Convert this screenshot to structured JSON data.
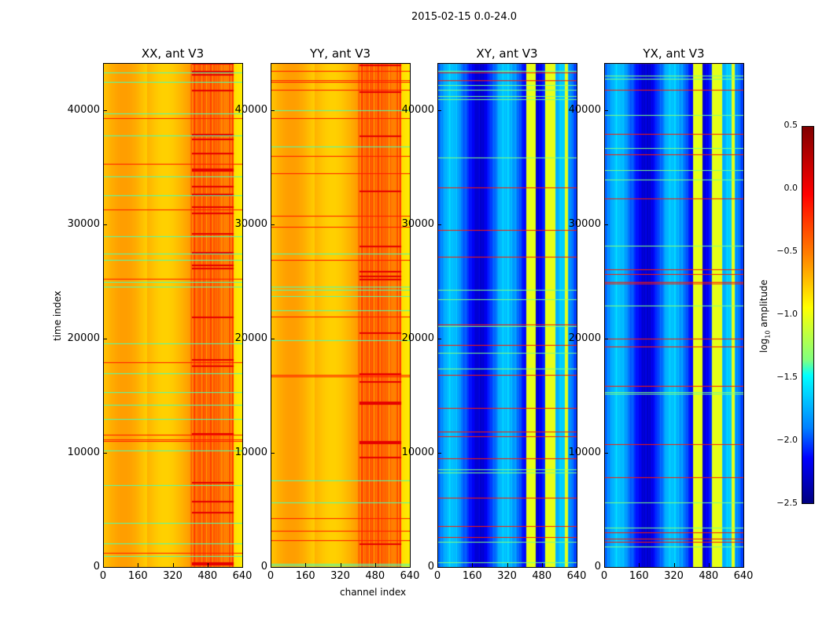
{
  "chart_data": {
    "type": "heatmap",
    "suptitle": "2015-02-15 0.0-24.0",
    "panels": [
      {
        "title": "XX, ant V3",
        "base": "yellow-orange"
      },
      {
        "title": "YY, ant V3",
        "base": "yellow-orange"
      },
      {
        "title": "XY, ant V3",
        "base": "blue"
      },
      {
        "title": "YX, ant V3",
        "base": "blue"
      }
    ],
    "xlabel": "channel index",
    "ylabel": "time index",
    "xlim": [
      0,
      640
    ],
    "ylim": [
      0,
      44100
    ],
    "xticks": [
      "0",
      "160",
      "320",
      "480",
      "640"
    ],
    "yticks": [
      "0",
      "10000",
      "20000",
      "30000",
      "40000"
    ],
    "colorbar": {
      "label": "log10 amplitude",
      "label_main": "log",
      "label_sub": "10",
      "label_rest": " amplitude",
      "range": [
        -2.5,
        0.5
      ],
      "ticks": [
        "0.5",
        "0.0",
        "−0.5",
        "−1.0",
        "−1.5",
        "−2.0",
        "−2.5"
      ],
      "colormap": "jet"
    }
  }
}
